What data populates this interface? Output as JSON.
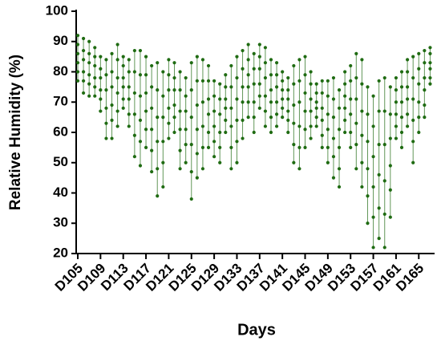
{
  "chart_data": {
    "type": "strip",
    "x_label": "Days",
    "y_label": "Relative Humidity (%)",
    "color": "#1f6b12",
    "ylim": [
      20,
      100
    ],
    "yticks": [
      20,
      30,
      40,
      50,
      60,
      70,
      80,
      90,
      100
    ],
    "categories": [
      "D105",
      null,
      null,
      null,
      "D109",
      null,
      null,
      null,
      "D113",
      null,
      null,
      null,
      "D117",
      null,
      null,
      null,
      "D121",
      null,
      null,
      null,
      "D125",
      null,
      null,
      null,
      "D129",
      null,
      null,
      null,
      "D133",
      null,
      null,
      null,
      "D137",
      null,
      null,
      null,
      "D141",
      null,
      null,
      null,
      "D145",
      null,
      null,
      null,
      "D149",
      null,
      null,
      null,
      "D153",
      null,
      null,
      null,
      "D157",
      null,
      null,
      null,
      "D161",
      null,
      null,
      null,
      "D165",
      null,
      null
    ],
    "values": [
      [
        92,
        89,
        86,
        83,
        80,
        77
      ],
      [
        91,
        87,
        84,
        80,
        77,
        73
      ],
      [
        90,
        86,
        83,
        79,
        76,
        72
      ],
      [
        88,
        85,
        82,
        78,
        75,
        72
      ],
      [
        85,
        81,
        78,
        74,
        71,
        67
      ],
      [
        84,
        79,
        74,
        68,
        63,
        58
      ],
      [
        86,
        80,
        75,
        69,
        64,
        58
      ],
      [
        89,
        84,
        78,
        73,
        67,
        62
      ],
      [
        85,
        82,
        78,
        75,
        71,
        68
      ],
      [
        84,
        80,
        75,
        71,
        66,
        62
      ],
      [
        87,
        80,
        73,
        66,
        59,
        52
      ],
      [
        87,
        79,
        72,
        64,
        57,
        49
      ],
      [
        85,
        79,
        73,
        67,
        61,
        55
      ],
      [
        82,
        75,
        68,
        61,
        54,
        47
      ],
      [
        83,
        74,
        65,
        57,
        48,
        39
      ],
      [
        80,
        72,
        65,
        57,
        50,
        42
      ],
      [
        84,
        79,
        74,
        68,
        63,
        58
      ],
      [
        83,
        78,
        74,
        69,
        65,
        60
      ],
      [
        80,
        74,
        67,
        61,
        54,
        48
      ],
      [
        78,
        72,
        67,
        61,
        56,
        50
      ],
      [
        83,
        74,
        65,
        56,
        47,
        38
      ],
      [
        85,
        77,
        69,
        61,
        53,
        45
      ],
      [
        84,
        77,
        70,
        62,
        55,
        48
      ],
      [
        82,
        77,
        71,
        66,
        60,
        55
      ],
      [
        77,
        72,
        67,
        62,
        57,
        52
      ],
      [
        76,
        71,
        66,
        60,
        55,
        50
      ],
      [
        79,
        75,
        71,
        68,
        64,
        60
      ],
      [
        82,
        75,
        68,
        62,
        55,
        48
      ],
      [
        85,
        78,
        71,
        64,
        57,
        50
      ],
      [
        87,
        81,
        75,
        70,
        64,
        58
      ],
      [
        89,
        84,
        79,
        75,
        70,
        65
      ],
      [
        86,
        81,
        76,
        70,
        65,
        60
      ],
      [
        89,
        85,
        81,
        76,
        72,
        68
      ],
      [
        88,
        83,
        78,
        72,
        67,
        62
      ],
      [
        84,
        79,
        74,
        70,
        65,
        60
      ],
      [
        83,
        79,
        75,
        70,
        66,
        62
      ],
      [
        80,
        77,
        74,
        71,
        68,
        65
      ],
      [
        78,
        74,
        71,
        67,
        64,
        60
      ],
      [
        82,
        76,
        69,
        63,
        56,
        50
      ],
      [
        84,
        77,
        70,
        62,
        55,
        48
      ],
      [
        85,
        79,
        73,
        67,
        61,
        55
      ],
      [
        80,
        76,
        71,
        67,
        62,
        58
      ],
      [
        76,
        73,
        70,
        68,
        65,
        62
      ],
      [
        77,
        73,
        68,
        64,
        59,
        55
      ],
      [
        77,
        72,
        66,
        61,
        55,
        50
      ],
      [
        78,
        71,
        65,
        58,
        52,
        45
      ],
      [
        74,
        68,
        61,
        55,
        48,
        42
      ],
      [
        80,
        76,
        72,
        68,
        64,
        60
      ],
      [
        82,
        77,
        71,
        66,
        60,
        55
      ],
      [
        86,
        78,
        71,
        63,
        56,
        48
      ],
      [
        84,
        76,
        67,
        59,
        50,
        42
      ],
      [
        75,
        66,
        57,
        48,
        39,
        30
      ],
      [
        72,
        62,
        52,
        42,
        32,
        22
      ],
      [
        77,
        67,
        56,
        46,
        35,
        25
      ],
      [
        78,
        67,
        56,
        44,
        33,
        22
      ],
      [
        75,
        66,
        58,
        49,
        41,
        32
      ],
      [
        78,
        74,
        70,
        66,
        62,
        58
      ],
      [
        80,
        75,
        70,
        65,
        60,
        55
      ],
      [
        84,
        80,
        75,
        71,
        66,
        62
      ],
      [
        85,
        78,
        71,
        64,
        57,
        50
      ],
      [
        86,
        81,
        76,
        70,
        65,
        60
      ],
      [
        87,
        83,
        78,
        74,
        69,
        65
      ],
      [
        88,
        86,
        83,
        81,
        78,
        76
      ]
    ]
  }
}
